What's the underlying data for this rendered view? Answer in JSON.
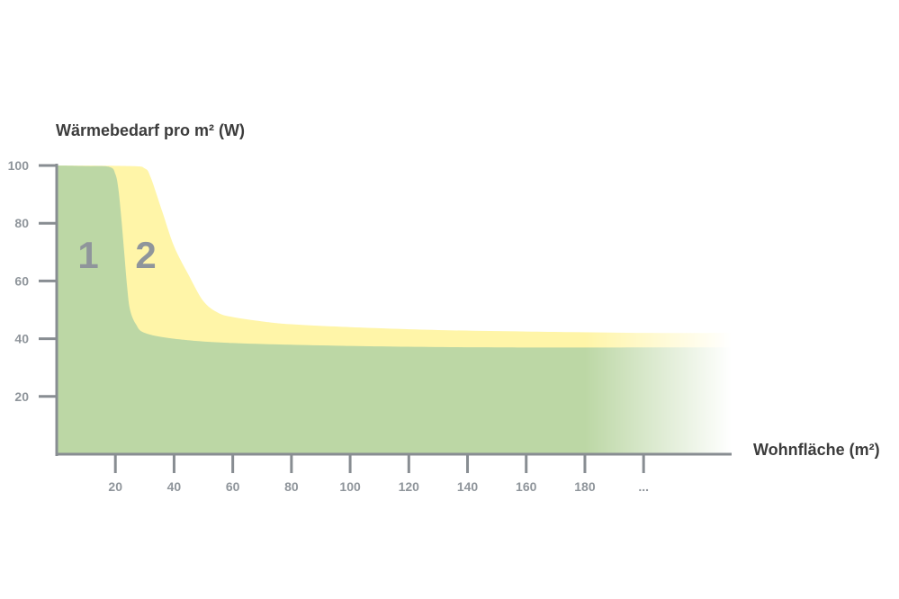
{
  "chart_data": {
    "type": "area",
    "ylabel": "Wärmebedarf pro m² (W)",
    "xlabel": "Wohnfläche (m²)",
    "ylim": [
      0,
      100
    ],
    "xlim": [
      0,
      230
    ],
    "y_ticks": [
      20,
      40,
      60,
      80,
      100
    ],
    "y_tick_labels": [
      "20",
      "40",
      "60",
      "80",
      "100"
    ],
    "x_ticks": [
      20,
      40,
      60,
      80,
      100,
      120,
      140,
      160,
      180,
      200
    ],
    "x_tick_labels": [
      "20",
      "40",
      "60",
      "80",
      "100",
      "120",
      "140",
      "160",
      "180",
      "..."
    ],
    "grid": false,
    "series": [
      {
        "name": "2",
        "color": "#fff5a8",
        "points": [
          [
            0,
            100
          ],
          [
            25,
            99.8
          ],
          [
            30,
            99
          ],
          [
            32,
            96
          ],
          [
            36,
            84
          ],
          [
            40,
            72
          ],
          [
            45,
            62
          ],
          [
            50,
            53
          ],
          [
            55,
            49
          ],
          [
            60,
            47.5
          ],
          [
            70,
            46
          ],
          [
            80,
            45
          ],
          [
            100,
            44
          ],
          [
            130,
            43
          ],
          [
            160,
            42.5
          ],
          [
            200,
            42
          ],
          [
            230,
            42
          ]
        ]
      },
      {
        "name": "1",
        "color": "#bcd7a5",
        "points": [
          [
            0,
            100
          ],
          [
            10,
            99.8
          ],
          [
            18,
            99.5
          ],
          [
            20,
            97
          ],
          [
            21,
            92
          ],
          [
            22,
            82
          ],
          [
            23,
            70
          ],
          [
            24,
            58
          ],
          [
            25,
            50
          ],
          [
            27,
            45
          ],
          [
            30,
            42
          ],
          [
            40,
            40
          ],
          [
            60,
            38.5
          ],
          [
            100,
            37.5
          ],
          [
            150,
            37
          ],
          [
            230,
            37
          ]
        ]
      }
    ],
    "annotations": [
      "1",
      "2"
    ],
    "fade_from_x": 180
  }
}
